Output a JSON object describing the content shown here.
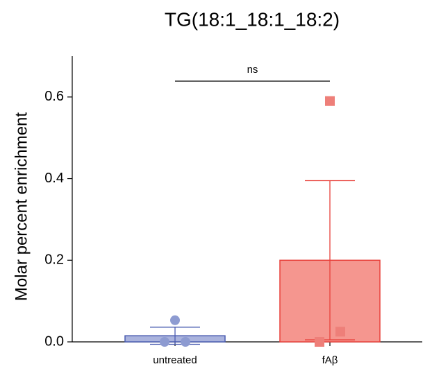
{
  "chart_data": {
    "type": "bar",
    "title": "TG(18:1_18:1_18:2)",
    "y_label": "Molar percent enrichment",
    "categories": [
      "untreated",
      "fAβ"
    ],
    "values": [
      0.015,
      0.2
    ],
    "errors": [
      0.021,
      0.195
    ],
    "points": [
      [
        0.053,
        0,
        0
      ],
      [
        0.59,
        0.025,
        0
      ]
    ],
    "colors": [
      "#aab3dd",
      "#f5968f"
    ],
    "edge_colors": [
      "#4a5cb0",
      "#e8403a"
    ],
    "point_colors": [
      "#8d9bd1",
      "#ee7f79"
    ],
    "annotation": "ns",
    "ylim": [
      0,
      0.7
    ],
    "yticks": [
      {
        "value": 0,
        "label": "0.0"
      },
      0.2,
      0.4,
      0.6
    ]
  }
}
